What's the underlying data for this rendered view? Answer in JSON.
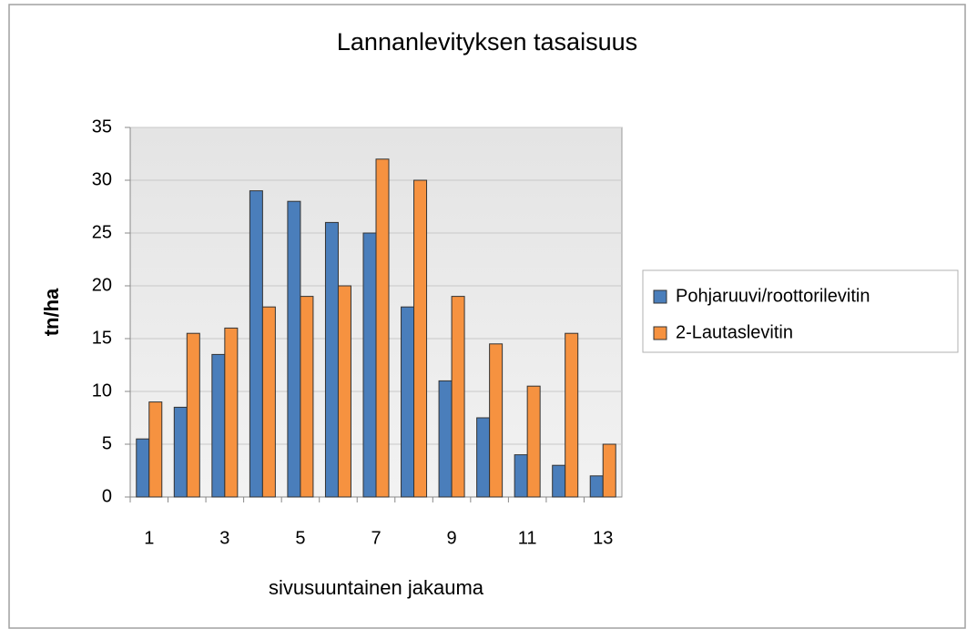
{
  "chart_data": {
    "type": "bar",
    "title": "Lannanlevityksen tasaisuus",
    "x_label": "sivusuuntainen jakauma",
    "y_label": "tn/ha",
    "categories": [
      "1",
      null,
      "3",
      null,
      "5",
      null,
      "7",
      null,
      "9",
      null,
      "11",
      null,
      "13"
    ],
    "series": [
      {
        "name": "Pohjaruuvi/roottorilevitin",
        "color": "#4a7ebb",
        "values": [
          5.5,
          8.5,
          13.5,
          29,
          28,
          26,
          25,
          18,
          11,
          7.5,
          4,
          3,
          2
        ]
      },
      {
        "name": "2-Lautaslevitin",
        "color": "#f69240",
        "values": [
          9,
          15.5,
          16,
          18,
          19,
          20,
          32,
          30,
          19,
          14.5,
          10.5,
          15.5,
          5
        ]
      }
    ],
    "ylim": [
      0,
      35
    ],
    "yticks": [
      0,
      5,
      10,
      15,
      20,
      25,
      30,
      35
    ],
    "grid": true,
    "legend": "right"
  }
}
